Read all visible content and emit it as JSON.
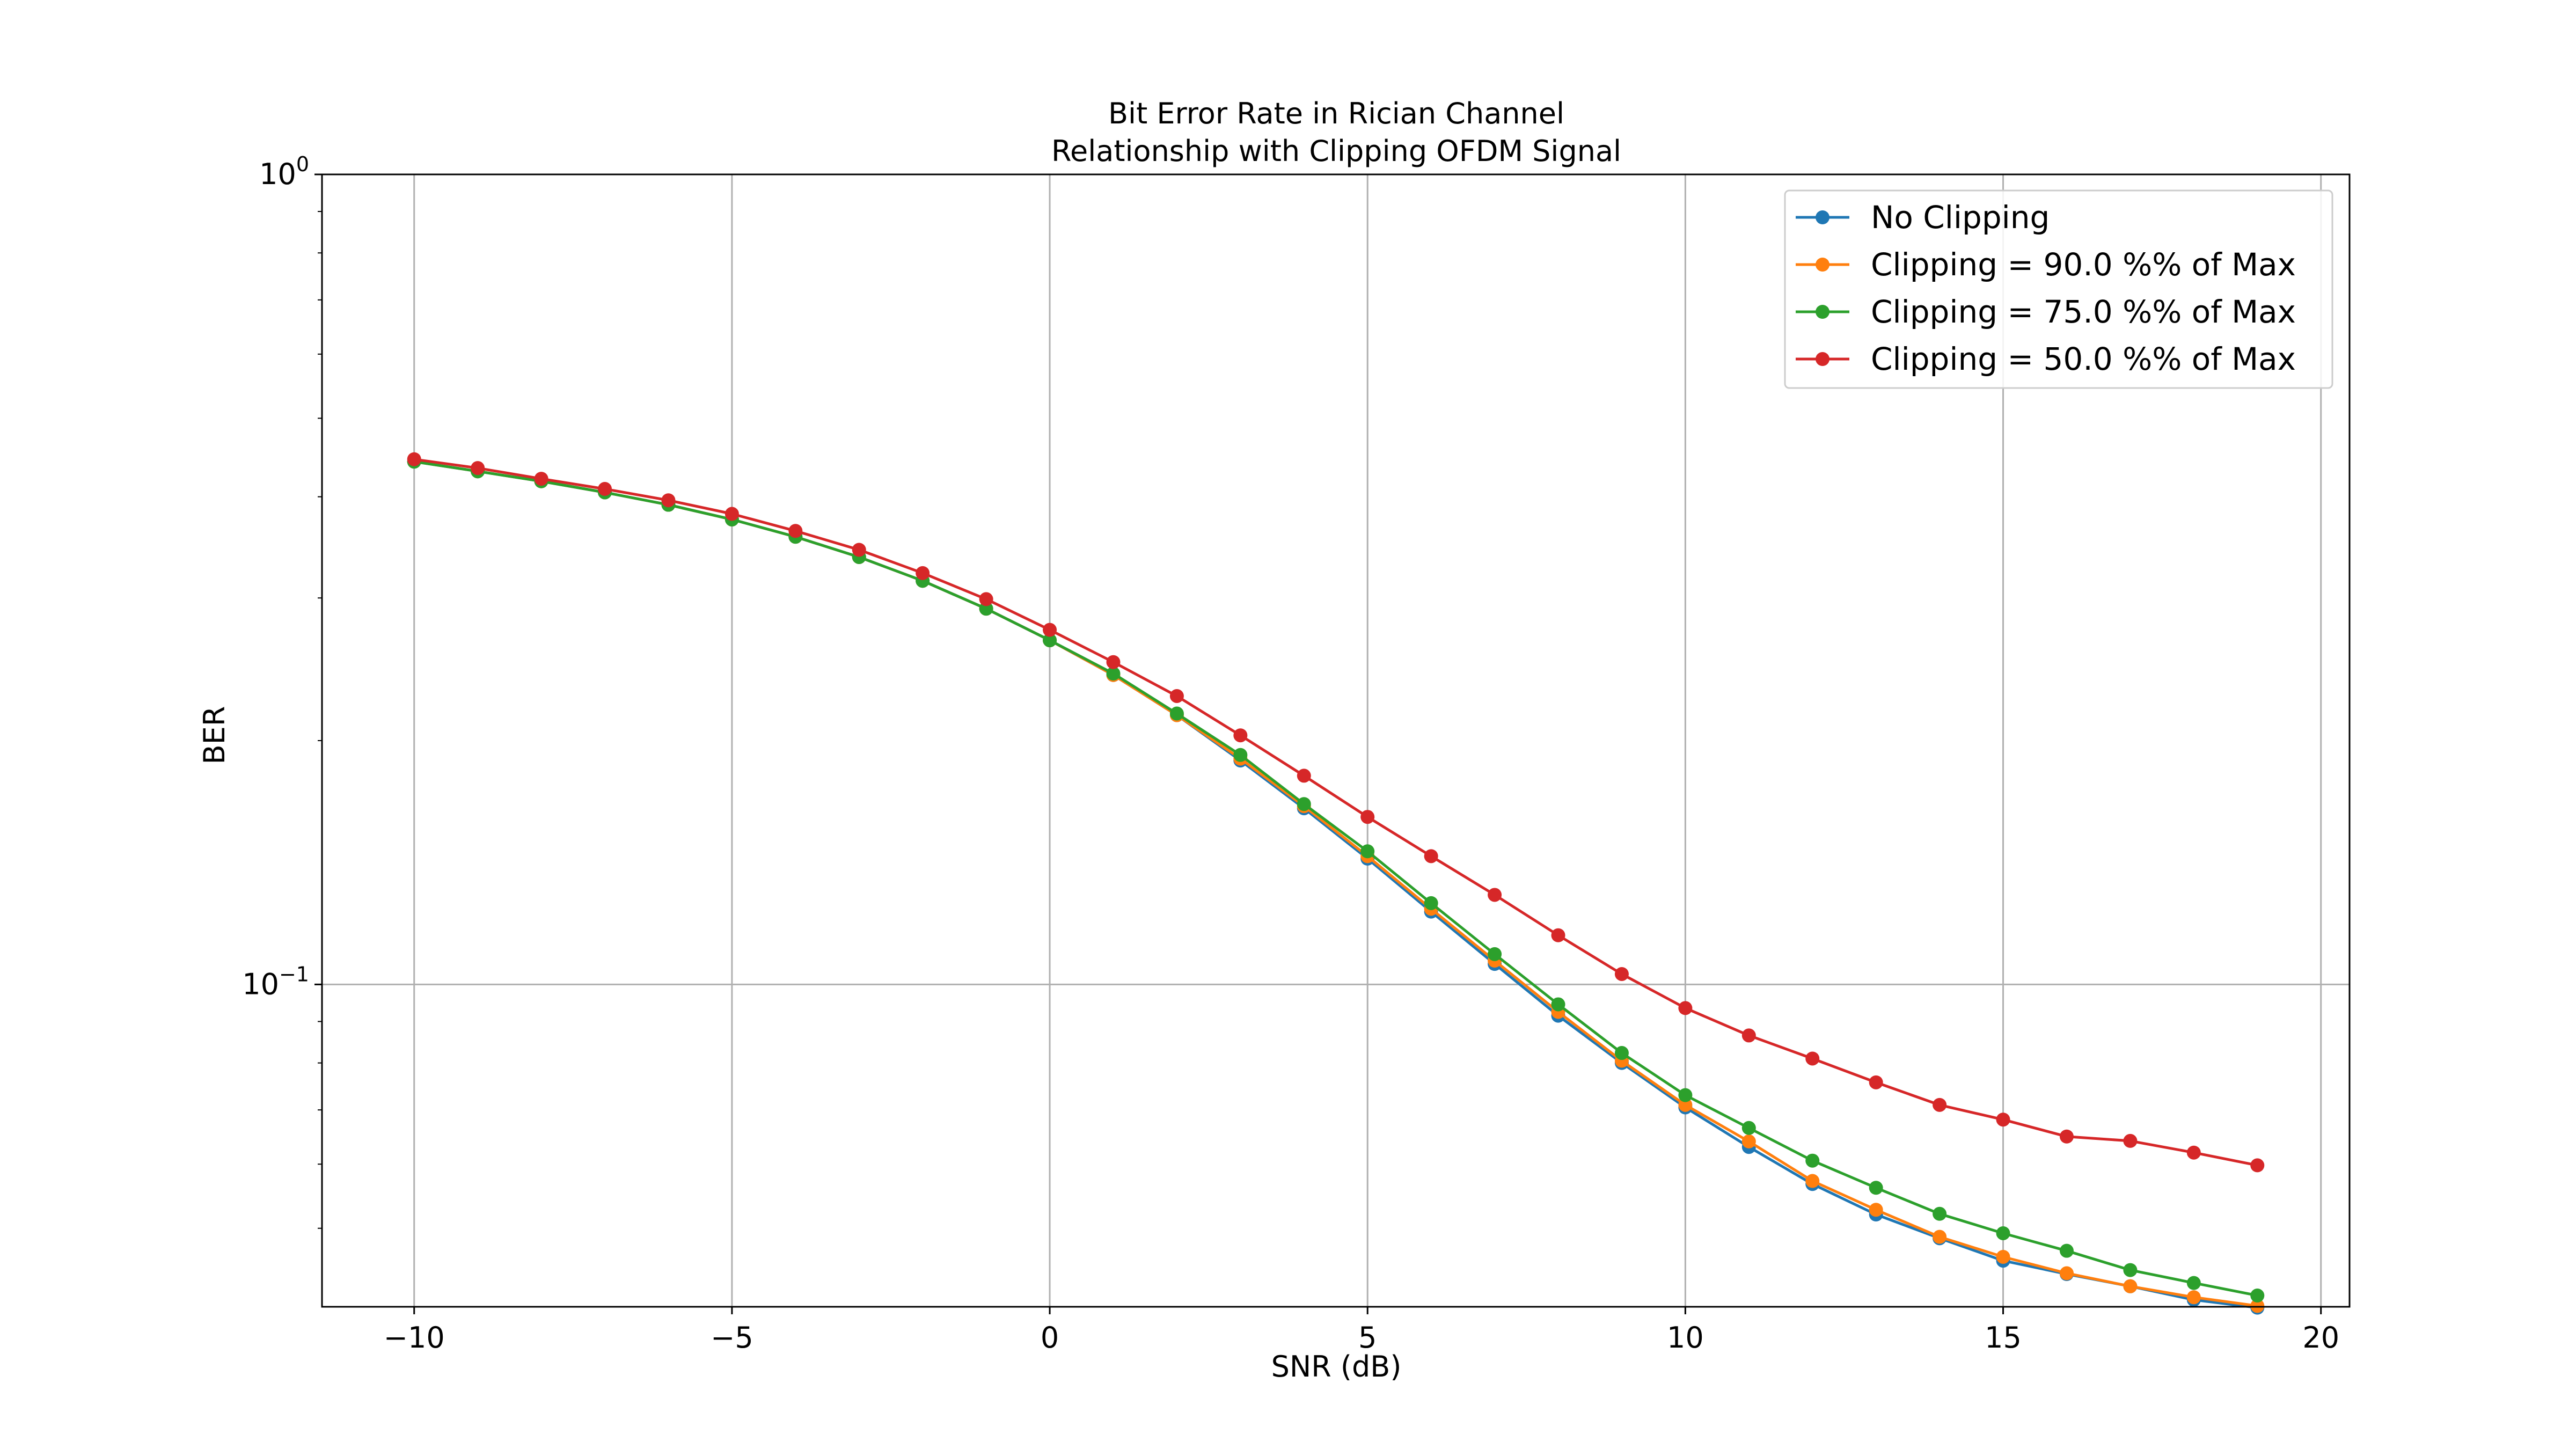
{
  "chart_data": {
    "type": "line",
    "title": [
      "Bit Error Rate in Rician Channel",
      "Relationship with Clipping OFDM Signal"
    ],
    "xlabel": "SNR (dB)",
    "ylabel": "BER",
    "yscale": "log",
    "xlim": [
      -11.45,
      20.45
    ],
    "ylim": [
      0.04,
      1.0
    ],
    "xticks": [
      -10,
      -5,
      0,
      5,
      10,
      15,
      20
    ],
    "xtick_labels": [
      "−10",
      "−5",
      "0",
      "5",
      "10",
      "15",
      "20"
    ],
    "yticks": [
      {
        "value": 1.0,
        "base": "10",
        "exp": "0"
      },
      {
        "value": 0.1,
        "base": "10",
        "exp": "−1"
      }
    ],
    "grid": true,
    "legend_position": "top-right",
    "x": [
      -10,
      -9,
      -8,
      -7,
      -6,
      -5,
      -4,
      -3,
      -2,
      -1,
      0,
      1,
      2,
      3,
      4,
      5,
      6,
      7,
      8,
      9,
      10,
      11,
      12,
      13,
      14,
      15,
      16,
      17,
      18,
      19
    ],
    "series": [
      {
        "name": "No Clipping",
        "color": "#1f77b4",
        "values": [
          0.442,
          0.43,
          0.418,
          0.405,
          0.391,
          0.375,
          0.357,
          0.337,
          0.315,
          0.291,
          0.266,
          0.241,
          0.215,
          0.189,
          0.165,
          0.143,
          0.123,
          0.106,
          0.0915,
          0.08,
          0.0705,
          0.063,
          0.0567,
          0.052,
          0.0486,
          0.0456,
          0.0439,
          0.0424,
          0.0408,
          0.0399
        ]
      },
      {
        "name": "Clipping = 90.0 %% of Max",
        "color": "#ff7f0e",
        "values": [
          0.442,
          0.43,
          0.418,
          0.405,
          0.391,
          0.375,
          0.357,
          0.337,
          0.315,
          0.291,
          0.266,
          0.241,
          0.215,
          0.19,
          0.166,
          0.144,
          0.124,
          0.107,
          0.0925,
          0.0805,
          0.071,
          0.064,
          0.0572,
          0.0527,
          0.0488,
          0.0461,
          0.044,
          0.0424,
          0.0411,
          0.0401
        ]
      },
      {
        "name": "Clipping = 75.0 %% of Max",
        "color": "#2ca02c",
        "values": [
          0.442,
          0.43,
          0.418,
          0.405,
          0.391,
          0.375,
          0.357,
          0.337,
          0.315,
          0.291,
          0.266,
          0.242,
          0.216,
          0.192,
          0.167,
          0.146,
          0.126,
          0.109,
          0.0945,
          0.0823,
          0.073,
          0.0665,
          0.0606,
          0.0561,
          0.0521,
          0.0493,
          0.0469,
          0.0444,
          0.0428,
          0.0413
        ]
      },
      {
        "name": "Clipping = 50.0 %% of Max",
        "color": "#d62728",
        "values": [
          0.445,
          0.434,
          0.421,
          0.409,
          0.396,
          0.381,
          0.363,
          0.344,
          0.322,
          0.299,
          0.274,
          0.25,
          0.227,
          0.203,
          0.181,
          0.161,
          0.144,
          0.129,
          0.115,
          0.103,
          0.0935,
          0.0865,
          0.081,
          0.0757,
          0.071,
          0.0681,
          0.0649,
          0.0641,
          0.062,
          0.0598
        ]
      }
    ]
  }
}
